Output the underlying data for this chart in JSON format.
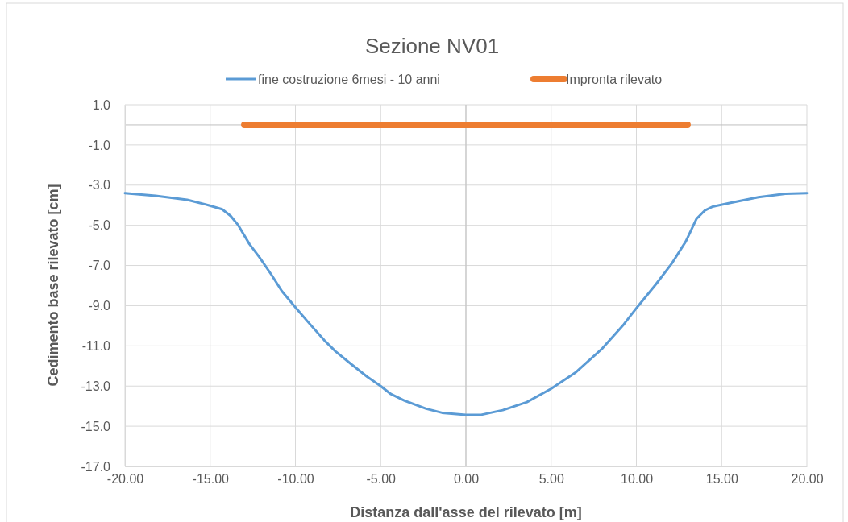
{
  "chart_data": {
    "type": "line",
    "title": "Sezione NV01",
    "xlabel": "Distanza dall'asse del rilevato [m]",
    "ylabel": "Cedimento base rilevato [cm]",
    "xlim": [
      -20,
      20
    ],
    "ylim": [
      -17,
      1
    ],
    "xticks": [
      {
        "value": -20,
        "label": "-20.00"
      },
      {
        "value": -15,
        "label": "-15.00"
      },
      {
        "value": -10,
        "label": "-10.00"
      },
      {
        "value": -5,
        "label": "-5.00"
      },
      {
        "value": 0,
        "label": "0.00"
      },
      {
        "value": 5,
        "label": "5.00"
      },
      {
        "value": 10,
        "label": "10.00"
      },
      {
        "value": 15,
        "label": "15.00"
      },
      {
        "value": 20,
        "label": "20.00"
      }
    ],
    "yticks": [
      {
        "value": 1,
        "label": "1.0"
      },
      {
        "value": -1,
        "label": "-1.0"
      },
      {
        "value": -3,
        "label": "-3.0"
      },
      {
        "value": -5,
        "label": "-5.0"
      },
      {
        "value": -7,
        "label": "-7.0"
      },
      {
        "value": -9,
        "label": "-9.0"
      },
      {
        "value": -11,
        "label": "-11.0"
      },
      {
        "value": -13,
        "label": "-13.0"
      },
      {
        "value": -15,
        "label": "-15.0"
      },
      {
        "value": -17,
        "label": "-17.0"
      }
    ],
    "grid": true,
    "legend": "top",
    "marker": "none",
    "series": [
      {
        "name": "fine costruzione 6mesi - 10 anni",
        "color": "#5b9bd5",
        "line_style": "solid",
        "x": [
          -20,
          -18.2,
          -16.35,
          -15.1,
          -14.3,
          -13.8,
          -13.35,
          -12.7,
          -12.1,
          -11.4,
          -10.8,
          -9.95,
          -9.2,
          -8.3,
          -7.65,
          -6.7,
          -5.8,
          -5,
          -4.4,
          -3.6,
          -2.33,
          -1.4,
          0,
          0.9,
          2.16,
          3.58,
          5,
          6.42,
          8,
          9.26,
          10.05,
          11.15,
          12.1,
          12.9,
          13.53,
          14,
          14.47,
          15.58,
          17.16,
          18.74,
          20
        ],
        "values": [
          -3.4,
          -3.53,
          -3.73,
          -4,
          -4.2,
          -4.53,
          -5,
          -5.93,
          -6.6,
          -7.47,
          -8.27,
          -9.13,
          -9.87,
          -10.73,
          -11.27,
          -11.93,
          -12.53,
          -13,
          -13.4,
          -13.73,
          -14.13,
          -14.33,
          -14.43,
          -14.43,
          -14.2,
          -13.8,
          -13.13,
          -12.33,
          -11.13,
          -9.93,
          -9.07,
          -7.93,
          -6.87,
          -5.8,
          -4.67,
          -4.27,
          -4.07,
          -3.87,
          -3.6,
          -3.43,
          -3.4
        ]
      },
      {
        "name": "Impronta rilevato",
        "color": "#ed7d31",
        "line_style": "solid",
        "x": [
          -13,
          13
        ],
        "values": [
          0,
          0
        ]
      }
    ]
  }
}
